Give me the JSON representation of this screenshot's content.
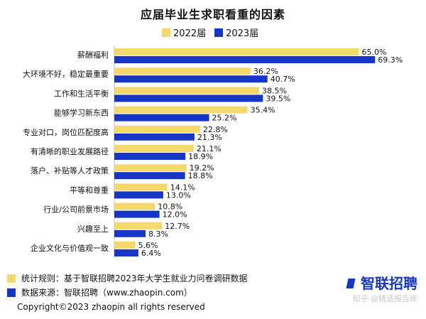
{
  "chart_data": {
    "type": "bar",
    "orientation": "horizontal",
    "title": "应届毕业生求职看重的因素",
    "categories": [
      "薪酬福利",
      "大环境不好，稳定最重要",
      "工作和生活平衡",
      "能够学习新东西",
      "专业对口，岗位匹配度高",
      "有清晰的职业发展路径",
      "落户、补贴等人才政策",
      "平等和尊重",
      "行业/公司前景市场",
      "兴趣至上",
      "企业文化与价值观一致"
    ],
    "series": [
      {
        "name": "2022届",
        "color": "#f5d86b",
        "values": [
          65.0,
          36.2,
          38.5,
          35.4,
          22.8,
          21.1,
          19.2,
          14.1,
          10.8,
          12.7,
          5.6
        ]
      },
      {
        "name": "2023届",
        "color": "#1636c7",
        "values": [
          69.3,
          40.7,
          39.5,
          25.2,
          21.3,
          18.9,
          18.8,
          13.0,
          12.0,
          8.3,
          6.4
        ]
      }
    ],
    "value_suffix": "%",
    "xlim": [
      0,
      75
    ],
    "legend_position": "top",
    "grid": false
  },
  "footer": {
    "stat_rule": "统计规则：基于智联招聘2023年大学生就业力问卷调研数据",
    "data_source": "数据来源：智联招聘（www.zhaopin.com）",
    "copyright": "Copyright©2023 zhaopin all rights reserved",
    "logo": "智联招聘",
    "watermark": "知乎 @精选报告库"
  },
  "colors": {
    "yellow": "#f5d86b",
    "blue": "#1636c7"
  }
}
